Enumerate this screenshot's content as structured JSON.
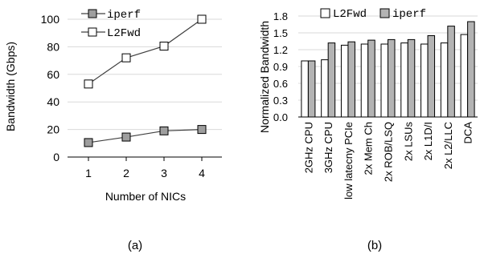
{
  "chart_data": [
    {
      "type": "line",
      "caption": "(a)",
      "xlabel": "Number of NICs",
      "ylabel": "Bandwidth (Gbps)",
      "categories": [
        "1",
        "2",
        "3",
        "4"
      ],
      "ylim": [
        0,
        100
      ],
      "yticks": [
        0,
        20,
        40,
        60,
        80,
        100
      ],
      "grid": "horizontal",
      "legend_position": "top-left",
      "series": [
        {
          "name": "iperf",
          "marker": "filled-square",
          "color": "#9e9e9e",
          "values": [
            10.5,
            14.5,
            19,
            20
          ]
        },
        {
          "name": "L2Fwd",
          "marker": "open-square",
          "color": "#ffffff",
          "values": [
            53,
            72,
            80.5,
            100
          ]
        }
      ]
    },
    {
      "type": "bar",
      "caption": "(b)",
      "xlabel": "",
      "ylabel": "Normalized Bandwidth",
      "ylim": [
        0,
        1.8
      ],
      "yticks": [
        "0.0",
        "0.3",
        "0.6",
        "0.9",
        "1.2",
        "1.5",
        "1.8"
      ],
      "grid": "horizontal",
      "legend_position": "top",
      "categories": [
        "2GHz CPU",
        "3GHz CPU",
        "low latecny PCIe",
        "2x Mem Ch",
        "2x ROB/LSQ",
        "2x LSUs",
        "2x L1D/I",
        "2x L2/LLC",
        "DCA"
      ],
      "series": [
        {
          "name": "L2Fwd",
          "color": "#ffffff",
          "values": [
            1.0,
            1.02,
            1.28,
            1.3,
            1.3,
            1.32,
            1.3,
            1.32,
            1.47
          ]
        },
        {
          "name": "iperf",
          "color": "#b3b3b3",
          "values": [
            1.0,
            1.32,
            1.34,
            1.37,
            1.38,
            1.38,
            1.45,
            1.62,
            1.7
          ]
        }
      ]
    }
  ]
}
